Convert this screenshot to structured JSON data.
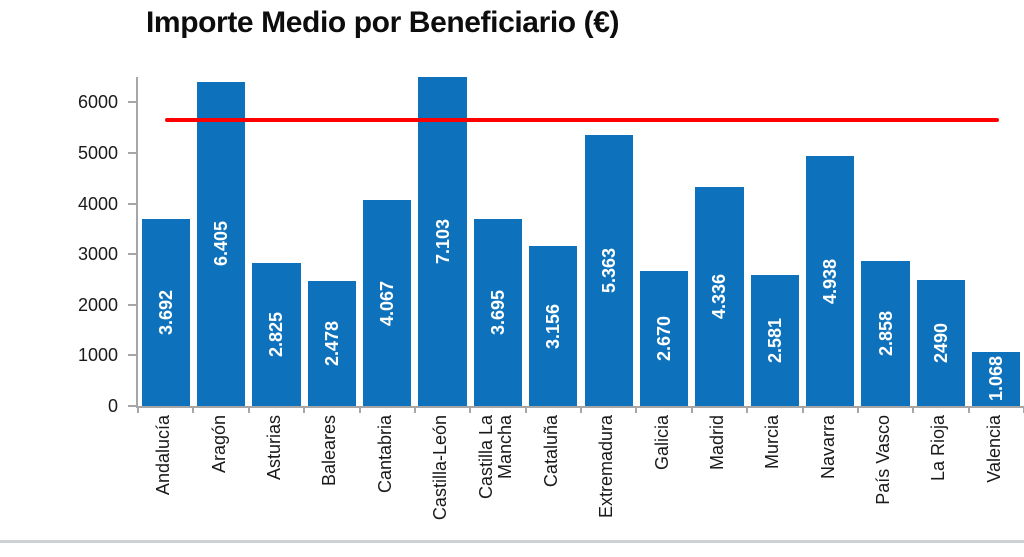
{
  "chart_data": {
    "type": "bar",
    "title": "Importe Medio por Beneficiario (€)",
    "categories": [
      "Andalucía",
      "Aragón",
      "Asturias",
      "Baleares",
      "Cantabria",
      "Castilla-León",
      "Castilla La\nMancha",
      "Cataluña",
      "Extremadura",
      "Galicia",
      "Madrid",
      "Murcia",
      "Navarra",
      "País Vasco",
      "La Rioja",
      "Valencia"
    ],
    "values": [
      3692,
      6405,
      2825,
      2478,
      4067,
      7103,
      3695,
      3156,
      5363,
      2670,
      4336,
      2581,
      4938,
      2858,
      2490,
      1068
    ],
    "bar_labels": [
      "3.692",
      "6.405",
      "2.825",
      "2.478",
      "4.067",
      "7.103",
      "3.695",
      "3.156",
      "5.363",
      "2.670",
      "4.336",
      "2.581",
      "4.938",
      "2.858",
      "2490",
      "1.068"
    ],
    "y_ticks": [
      0,
      1000,
      2000,
      3000,
      4000,
      5000,
      6000
    ],
    "ylim": [
      0,
      6500
    ],
    "xlabel": "",
    "ylabel": "",
    "grid": false,
    "legend": false,
    "bar_color": "#0d72bb",
    "label_color": "#ffffff",
    "reference_line": {
      "value": 5650,
      "color": "#ff0000"
    }
  }
}
